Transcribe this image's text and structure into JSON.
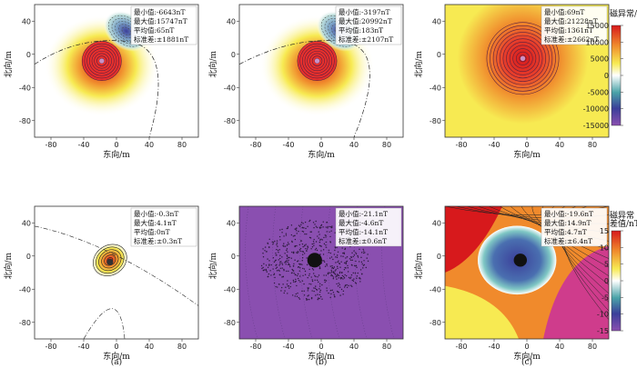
{
  "chart_data": [
    {
      "type": "heatmap",
      "panel": "a",
      "row": "top",
      "xlabel": "东向/m",
      "ylabel": "北向/m",
      "xlim": [
        -100,
        100
      ],
      "ylim": [
        -100,
        60
      ],
      "xticks": [
        -80,
        -40,
        0,
        40,
        80
      ],
      "yticks": [
        -80,
        -40,
        0,
        40
      ],
      "stats": {
        "min": "最小值:-6643nT",
        "max": "最大值:15747nT",
        "mean": "平均值:65nT",
        "std": "标准差:±1881nT"
      },
      "field": "dipole",
      "pos": [
        -18,
        -8
      ],
      "neg": [
        12,
        28
      ]
    },
    {
      "type": "heatmap",
      "panel": "b",
      "row": "top",
      "xlabel": "东向/m",
      "ylabel": "北向/m",
      "xlim": [
        -100,
        100
      ],
      "ylim": [
        -100,
        60
      ],
      "xticks": [
        -80,
        -40,
        0,
        40,
        80
      ],
      "yticks": [
        -80,
        -40,
        0,
        40
      ],
      "stats": {
        "min": "最小值:-3197nT",
        "max": "最大值:20992nT",
        "mean": "平均值:183nT",
        "std": "标准差:±2107nT"
      },
      "field": "dipole",
      "pos": [
        -5,
        -8
      ],
      "neg": [
        22,
        28
      ]
    },
    {
      "type": "heatmap",
      "panel": "c",
      "row": "top",
      "xlabel": "东向/m",
      "ylabel": "北向/m",
      "xlim": [
        -100,
        100
      ],
      "ylim": [
        -100,
        60
      ],
      "xticks": [
        -80,
        -40,
        0,
        40,
        80
      ],
      "yticks": [
        -80,
        -40,
        0,
        40
      ],
      "stats": {
        "min": "最小值:69nT",
        "max": "最大值:21228nT",
        "mean": "平均值:1361nT",
        "std": "标准差:±2662nT"
      },
      "field": "monopole",
      "pos": [
        -5,
        -5
      ]
    },
    {
      "type": "heatmap",
      "panel": "a",
      "row": "bottom",
      "xlabel": "东向/m",
      "ylabel": "北向/m",
      "xlim": [
        -100,
        100
      ],
      "ylim": [
        -100,
        60
      ],
      "xticks": [
        -80,
        -40,
        0,
        40,
        80
      ],
      "yticks": [
        -80,
        -40,
        0,
        40
      ],
      "stats": {
        "min": "最小值:-0.3nT",
        "max": "最大值:4.1nT",
        "mean": "平均值:0nT",
        "std": "标准差:±0.3nT"
      },
      "field": "small",
      "pos": [
        -8,
        -5
      ]
    },
    {
      "type": "heatmap",
      "panel": "b",
      "row": "bottom",
      "xlabel": "东向/m",
      "ylabel": "北向/m",
      "xlim": [
        -100,
        100
      ],
      "ylim": [
        -100,
        60
      ],
      "xticks": [
        -80,
        -40,
        0,
        40,
        80
      ],
      "yticks": [
        -80,
        -40,
        0,
        40
      ],
      "stats": {
        "min": "最小值:-21.1nT",
        "max": "最大值:-4.6nT",
        "mean": "平均值:-14.1nT",
        "std": "标准差:±0.6nT"
      },
      "field": "noise",
      "pos": [
        -8,
        -5
      ]
    },
    {
      "type": "heatmap",
      "panel": "c",
      "row": "bottom",
      "xlabel": "东向/m",
      "ylabel": "北向/m",
      "xlim": [
        -100,
        100
      ],
      "ylim": [
        -100,
        60
      ],
      "xticks": [
        -80,
        -40,
        0,
        40,
        80
      ],
      "yticks": [
        -80,
        -40,
        0,
        40
      ],
      "stats": {
        "min": "最小值:-19.6nT",
        "max": "最大值:14.9nT",
        "mean": "平均值:4.7nT",
        "std": "标准差:±6.4nT"
      },
      "field": "diff",
      "pos": [
        -8,
        -5
      ]
    }
  ],
  "colorbars": [
    {
      "title1": "磁异常/nT",
      "title2": "",
      "range": [
        -15000,
        15000
      ],
      "ticks": [
        "15000",
        "10000",
        "5000",
        "0",
        "-5000",
        "-10000",
        "-15000"
      ]
    },
    {
      "title1": "磁异常",
      "title2": "差值/nT",
      "range": [
        -15,
        15
      ],
      "ticks": [
        "15",
        "10",
        "5",
        "0",
        "-5",
        "-10",
        "-15"
      ]
    }
  ],
  "captions": [
    "(a)",
    "(b)",
    "(c)"
  ],
  "colors": {
    "red": "#d7191c",
    "yellow": "#f5e83c",
    "white": "#ffffff",
    "teal": "#6fb6ae",
    "blue": "#3b3f9a",
    "purple": "#8a4fb0"
  }
}
